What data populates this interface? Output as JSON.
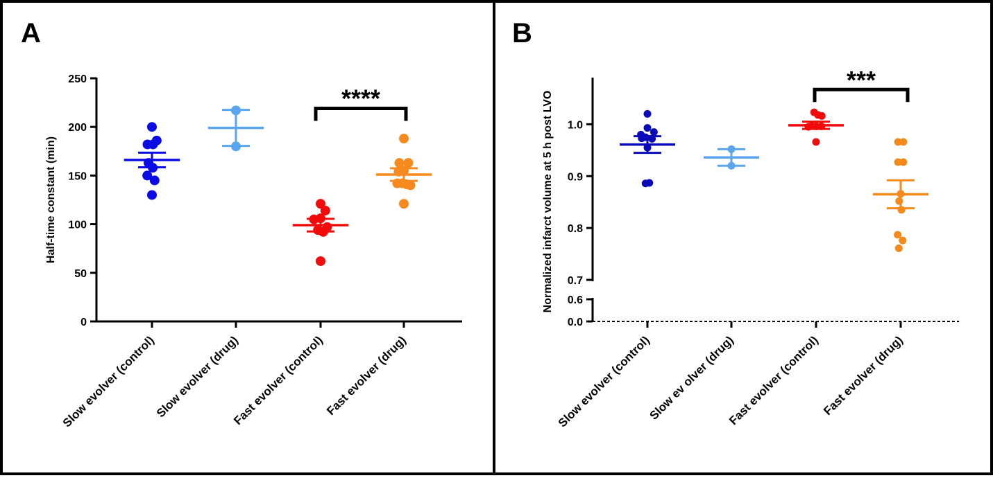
{
  "colors": {
    "slow_control": "#0b0be6",
    "slow_drug": "#5aa6ee",
    "fast_control": "#f20b0b",
    "fast_drug": "#f68a1e",
    "fast_drug_b": "#f58a1c",
    "slow_control_b": "#0a0ab8",
    "axis": "#000000"
  },
  "chart_data": [
    {
      "panel_label": "A",
      "type": "scatter",
      "ylabel": "Half-time constant (min)",
      "ylim": [
        0,
        250
      ],
      "yticks": [
        0,
        50,
        100,
        150,
        200,
        250
      ],
      "ytick_labels": [
        "0",
        "50",
        "100",
        "150",
        "200",
        "250"
      ],
      "categories": [
        "Slow evolver (control)",
        "Slow evolver (drug)",
        "Fast evolver (control)",
        "Fast evolver (drug)"
      ],
      "series": [
        {
          "name": "Slow evolver (control)",
          "color_key": "slow_control",
          "points": [
            [
              -0.17,
              182
            ],
            [
              0.04,
              182
            ],
            [
              0.18,
              186
            ],
            [
              0,
              200
            ],
            [
              -0.13,
              163
            ],
            [
              0.03,
              158
            ],
            [
              -0.18,
              150
            ],
            [
              0.1,
              145
            ],
            [
              0,
              130
            ]
          ],
          "mean": 166,
          "sem": 7.5
        },
        {
          "name": "Slow evolver (drug)",
          "color_key": "slow_drug",
          "points": [
            [
              0,
              217
            ],
            [
              0,
              180
            ]
          ],
          "mean": 199,
          "sem": 18.5
        },
        {
          "name": "Fast evolver (control)",
          "color_key": "fast_control",
          "points": [
            [
              0,
              121
            ],
            [
              -0.25,
              105
            ],
            [
              0,
              106
            ],
            [
              0.18,
              114
            ],
            [
              -0.1,
              94
            ],
            [
              0.1,
              92
            ],
            [
              0.25,
              97
            ],
            [
              0,
              62
            ]
          ],
          "mean": 99,
          "sem": 6.5
        },
        {
          "name": "Fast evolver (drug)",
          "color_key": "fast_drug",
          "points": [
            [
              0,
              188
            ],
            [
              -0.17,
              163
            ],
            [
              0.17,
              163
            ],
            [
              -0.2,
              154
            ],
            [
              0,
              155
            ],
            [
              -0.25,
              142
            ],
            [
              -0.05,
              142
            ],
            [
              0.1,
              141
            ],
            [
              0.25,
              140
            ],
            [
              0,
              121
            ]
          ],
          "mean": 151,
          "sem": 6.5
        }
      ],
      "significance": {
        "label": "****",
        "from": 2,
        "to": 3,
        "y": 219
      }
    },
    {
      "panel_label": "B",
      "type": "scatter",
      "ylabel": "Normalized infarct volume at 5 h post LVO",
      "ylim": [
        0,
        1.09
      ],
      "axis_break": {
        "lower": [
          0,
          0.6
        ],
        "upper": [
          0.7,
          1.09
        ]
      },
      "yticks": [
        0.0,
        0.6,
        0.7,
        0.8,
        0.9,
        1.0
      ],
      "ytick_labels": [
        "0.0",
        "0.6",
        "0.7",
        "0.8",
        "0.9",
        "1.0"
      ],
      "categories": [
        "Slow evolver (control)",
        "Slow ev olver (drug)",
        "Fast evolver (control)",
        "Fast evolver (drug)"
      ],
      "series": [
        {
          "name": "Slow evolver (control)",
          "color_key": "slow_control_b",
          "points": [
            [
              0,
              1.02
            ],
            [
              -0.17,
              0.98
            ],
            [
              0,
              0.993
            ],
            [
              0.17,
              0.985
            ],
            [
              -0.15,
              0.973
            ],
            [
              -0.05,
              0.975
            ],
            [
              0.12,
              0.972
            ],
            [
              0,
              0.955
            ],
            [
              -0.05,
              0.886
            ],
            [
              0.05,
              0.887
            ]
          ],
          "mean": 0.961,
          "sem": 0.016
        },
        {
          "name": "Slow ev olver (drug)",
          "color_key": "slow_drug",
          "points": [
            [
              0,
              0.952
            ],
            [
              0,
              0.92
            ]
          ],
          "mean": 0.936,
          "sem": 0.016
        },
        {
          "name": "Fast evolver (control)",
          "color_key": "fast_control",
          "points": [
            [
              -0.05,
              1.023
            ],
            [
              0.05,
              1.018
            ],
            [
              0.15,
              1.016
            ],
            [
              -0.12,
              0.997
            ],
            [
              0,
              0.996
            ],
            [
              0.14,
              0.996
            ],
            [
              -0.2,
              0.995
            ],
            [
              0,
              0.966
            ]
          ],
          "mean": 0.998,
          "sem": 0.007
        },
        {
          "name": "Fast evolver (drug)",
          "color_key": "fast_drug_b",
          "points": [
            [
              -0.07,
              0.966
            ],
            [
              0.07,
              0.966
            ],
            [
              -0.07,
              0.927
            ],
            [
              0.07,
              0.927
            ],
            [
              0,
              0.866
            ],
            [
              -0.04,
              0.852
            ],
            [
              0.02,
              0.835
            ],
            [
              -0.08,
              0.787
            ],
            [
              0.05,
              0.776
            ],
            [
              -0.05,
              0.761
            ]
          ],
          "mean": 0.865,
          "sem": 0.027
        },
        {
          "name": "",
          "color_key": "fast_drug_b",
          "points": [],
          "mean": null,
          "sem": null
        }
      ],
      "significance": {
        "label": "***",
        "from": 2,
        "to": 3,
        "y": 1.067
      }
    }
  ]
}
